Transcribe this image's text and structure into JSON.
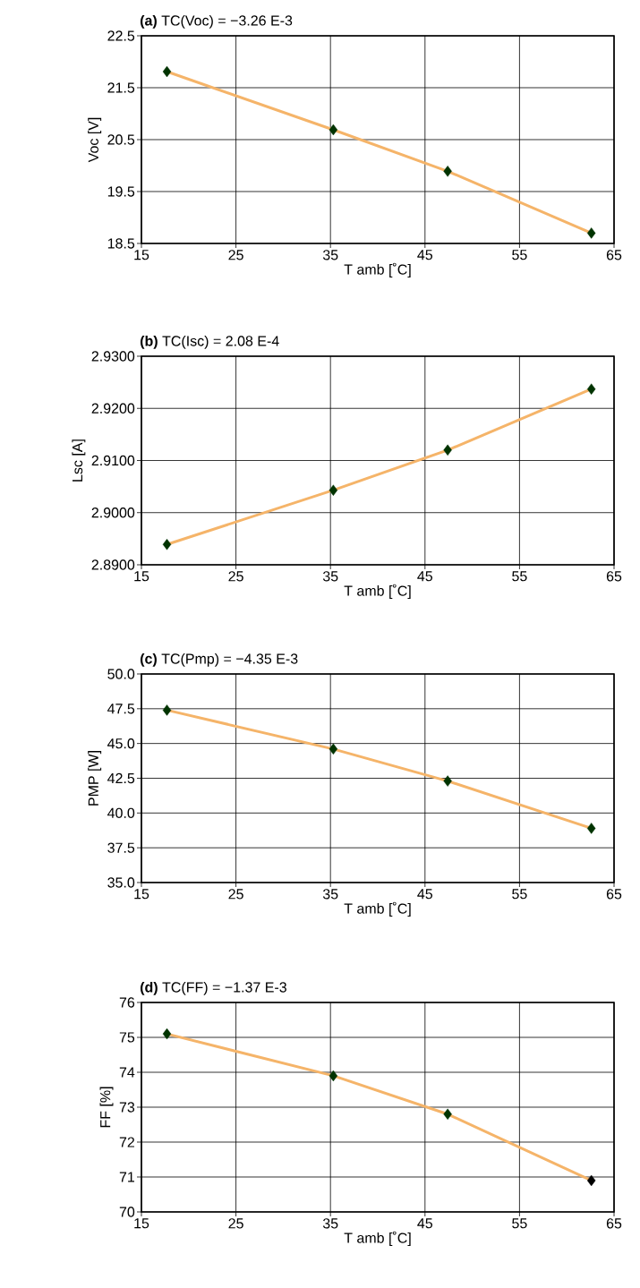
{
  "chart_data": [
    {
      "type": "line",
      "title": "**(a)** TC(Voc) = −3.26 E-3",
      "xlabel": "T amb [˚C]",
      "ylabel": "Voc [V]",
      "x": [
        17.7,
        35.3,
        47.4,
        62.6
      ],
      "series": [
        {
          "color": "#f5b469",
          "colors": [
            "#003300",
            "#003300",
            "#003300",
            "#003300"
          ],
          "values": [
            21.81,
            20.69,
            19.89,
            18.7
          ]
        }
      ],
      "xlim": [
        15,
        65
      ],
      "ylim": [
        18.5,
        22.5
      ],
      "xticks": [
        15,
        25,
        35,
        45,
        55,
        65
      ],
      "yticks": [
        18.5,
        19.5,
        20.5,
        21.5,
        22.5
      ],
      "grid": true,
      "marker": "diamond"
    },
    {
      "type": "line",
      "title": "**(b)** TC(Isc) = 2.08 E-4",
      "xlabel": "T amb [˚C]",
      "ylabel": "Lsc [A]",
      "x": [
        17.7,
        35.3,
        47.4,
        62.6
      ],
      "series": [
        {
          "color": "#f5b469",
          "colors": [
            "#003300",
            "#003300",
            "#003300",
            "#003300"
          ],
          "values": [
            2.8939,
            2.9043,
            2.912,
            2.9237
          ]
        }
      ],
      "xlim": [
        15,
        65
      ],
      "ylim": [
        2.89,
        2.93
      ],
      "xticks": [
        15,
        25,
        35,
        45,
        55,
        65
      ],
      "yticks": [
        {
          "value": 2.89,
          "label": "2.8900"
        },
        {
          "value": 2.9,
          "label": "2.9000"
        },
        {
          "value": 2.91,
          "label": "2.9100"
        },
        {
          "value": 2.92,
          "label": "2.9200"
        },
        {
          "value": 2.93,
          "label": "2.9300"
        }
      ],
      "grid": true,
      "marker": "diamond"
    },
    {
      "type": "line",
      "title": "**(c)** TC(Pmp) = −4.35 E-3",
      "xlabel": "T amb [˚C]",
      "ylabel": "PMP [W]",
      "x": [
        17.7,
        35.3,
        47.4,
        62.6
      ],
      "series": [
        {
          "color": "#f5b469",
          "colors": [
            "#003300",
            "#003300",
            "#003300",
            "#003300"
          ],
          "values": [
            47.4,
            44.6,
            42.3,
            38.9
          ]
        }
      ],
      "xlim": [
        15,
        65
      ],
      "ylim": [
        35,
        50
      ],
      "xticks": [
        15,
        25,
        35,
        45,
        55,
        65
      ],
      "yticks": [
        {
          "value": 35,
          "label": "35.0"
        },
        37.5,
        {
          "value": 40,
          "label": "40.0"
        },
        42.5,
        {
          "value": 45,
          "label": "45.0"
        },
        47.5,
        {
          "value": 50,
          "label": "50.0"
        }
      ],
      "grid": true,
      "marker": "diamond"
    },
    {
      "type": "line",
      "title": "**(d)** TC(FF) = −1.37 E-3",
      "xlabel": "T amb [˚C]",
      "ylabel": "FF [%]",
      "x": [
        17.7,
        35.3,
        47.4,
        62.6
      ],
      "series": [
        {
          "color": "#f5b469",
          "colors": [
            "#003300",
            "#003300",
            "#003300",
            "#000000"
          ],
          "values": [
            75.1,
            73.9,
            72.8,
            70.9
          ]
        }
      ],
      "xlim": [
        15,
        65
      ],
      "ylim": [
        70,
        76
      ],
      "xticks": [
        15,
        25,
        35,
        45,
        55,
        65
      ],
      "yticks": [
        70,
        71,
        72,
        73,
        74,
        75,
        76
      ],
      "grid": true,
      "marker": "diamond"
    }
  ]
}
